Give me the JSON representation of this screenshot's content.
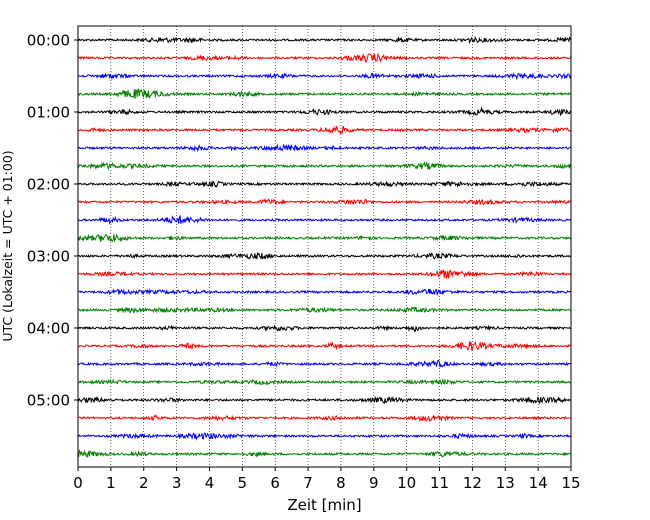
{
  "chart_data": {
    "type": "line",
    "title": "",
    "xlabel": "Zeit  [min]",
    "ylabel": "UTC (Lokalzeit = UTC + 01:00)",
    "xlim": [
      0,
      15
    ],
    "x_ticks": [
      "0",
      "1",
      "2",
      "3",
      "4",
      "5",
      "6",
      "7",
      "8",
      "9",
      "10",
      "11",
      "12",
      "13",
      "14",
      "15"
    ],
    "y_tick_labels": [
      "00:00",
      "01:00",
      "02:00",
      "03:00",
      "04:00",
      "05:00"
    ],
    "y_tick_minutes": [
      0,
      60,
      120,
      180,
      240,
      300
    ],
    "trace_interval_minutes": 15,
    "trace_count": 24,
    "grid": "vertical dotted",
    "trace_colors": [
      "#000000",
      "#ff0000",
      "#0000ff",
      "#007f00"
    ]
  }
}
